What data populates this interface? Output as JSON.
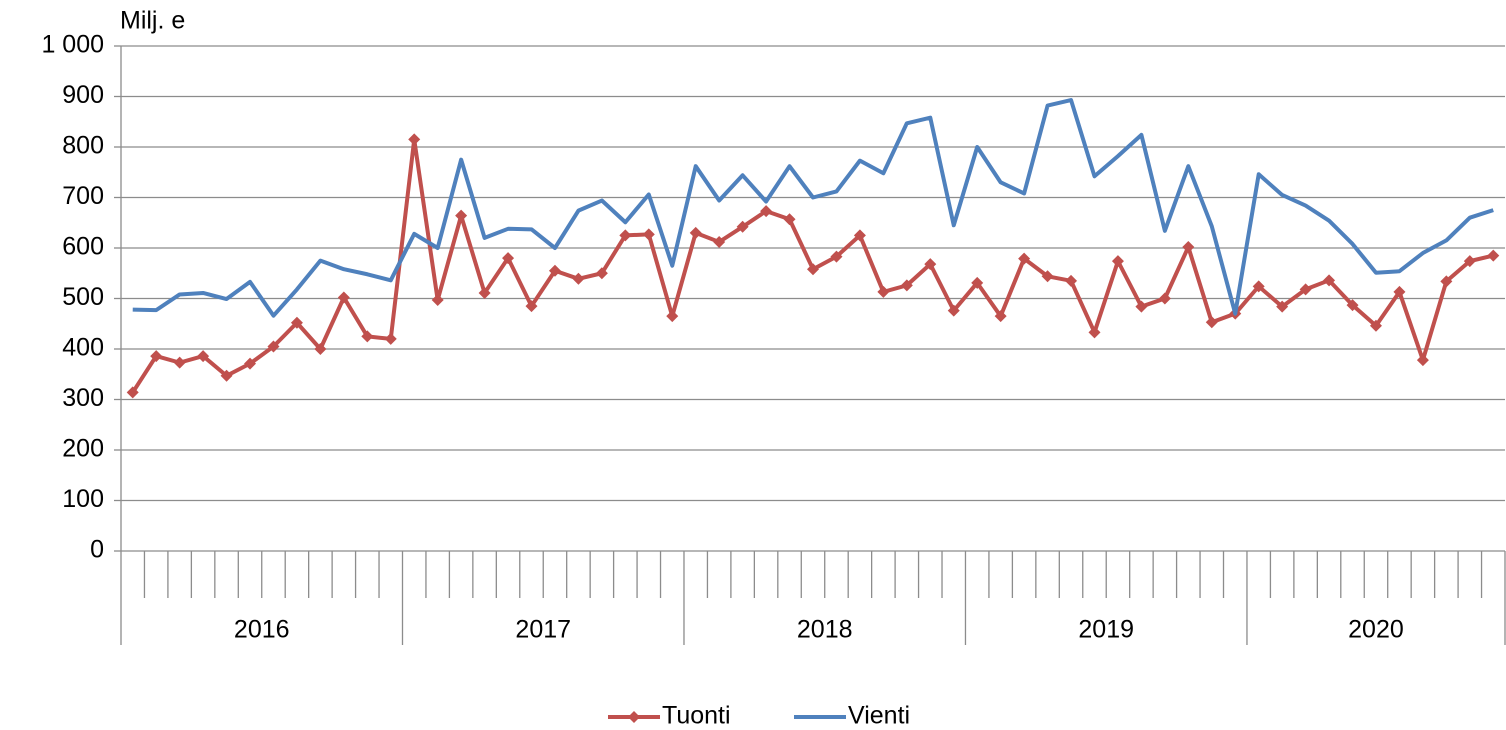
{
  "chart_data": {
    "type": "line",
    "y_label": "Milj. e",
    "categories": [
      null,
      null,
      null,
      null,
      null,
      null,
      null,
      null,
      null,
      null,
      null,
      null,
      null,
      null,
      null,
      null,
      null,
      null,
      null,
      null,
      null,
      null,
      null,
      null,
      null,
      null,
      null,
      null,
      null,
      null,
      null,
      null,
      null,
      null,
      null,
      null,
      null,
      null,
      null,
      null,
      null,
      null,
      null,
      null,
      null,
      null,
      null,
      null,
      null,
      null,
      null,
      null,
      null,
      null,
      null,
      null,
      null,
      null,
      null
    ],
    "groups": [
      {
        "label": "2016",
        "size": 12
      },
      {
        "label": "2017",
        "size": 12
      },
      {
        "label": "2018",
        "size": 12
      },
      {
        "label": "2019",
        "size": 12
      },
      {
        "label": "2020",
        "size": 11
      }
    ],
    "series": [
      {
        "name": "Tuonti",
        "color": "#c0504d",
        "marker": "diamond",
        "values": [
          314,
          386,
          373,
          386,
          347,
          371,
          405,
          452,
          400,
          502,
          425,
          420,
          815,
          497,
          664,
          511,
          580,
          485,
          555,
          539,
          550,
          625,
          627,
          465,
          630,
          612,
          642,
          673,
          657,
          558,
          583,
          625,
          513,
          526,
          568,
          476,
          531,
          465,
          579,
          544,
          535,
          433,
          574,
          484,
          500,
          602,
          453,
          470,
          524,
          484,
          518,
          536,
          487,
          446,
          513,
          378,
          534,
          574,
          585
        ]
      },
      {
        "name": "Vienti",
        "color": "#4f81bd",
        "values": [
          478,
          477,
          508,
          511,
          499,
          533,
          466,
          518,
          575,
          558,
          548,
          536,
          628,
          600,
          775,
          620,
          638,
          637,
          600,
          674,
          694,
          651,
          706,
          565,
          762,
          694,
          744,
          692,
          762,
          700,
          712,
          773,
          748,
          847,
          858,
          645,
          800,
          730,
          708,
          882,
          893,
          742,
          782,
          824,
          634,
          762,
          643,
          470,
          746,
          705,
          684,
          654,
          608,
          551,
          554,
          590,
          615,
          660,
          675
        ]
      }
    ],
    "ylim": [
      0,
      1000
    ],
    "yticks": [
      0,
      100,
      200,
      300,
      400,
      500,
      600,
      700,
      800,
      900,
      {
        "value": 1000,
        "label": "1 000"
      }
    ],
    "grid": true,
    "legend": "bottom"
  }
}
